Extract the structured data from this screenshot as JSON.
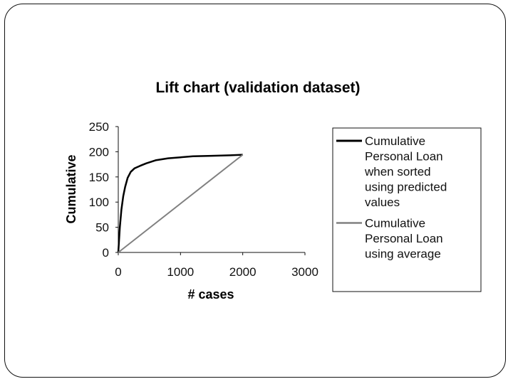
{
  "chart_data": {
    "type": "line",
    "title": "Lift chart (validation dataset)",
    "xlabel": "# cases",
    "ylabel": "Cumulative",
    "xlim": [
      0,
      3000
    ],
    "ylim": [
      0,
      250
    ],
    "x_ticks": [
      "0",
      "1000",
      "2000",
      "3000"
    ],
    "y_ticks": [
      "0",
      "50",
      "100",
      "150",
      "200",
      "250"
    ],
    "grid": false,
    "legend_position": "right",
    "series": [
      {
        "name": "Cumulative Personal Loan when sorted using predicted values",
        "name_lines": [
          "Cumulative",
          "Personal Loan",
          "when sorted",
          "using predicted",
          "values"
        ],
        "color": "#000000",
        "points": [
          [
            0,
            0
          ],
          [
            10,
            20
          ],
          [
            25,
            50
          ],
          [
            50,
            85
          ],
          [
            80,
            112
          ],
          [
            110,
            130
          ],
          [
            150,
            148
          ],
          [
            200,
            160
          ],
          [
            260,
            167
          ],
          [
            350,
            172
          ],
          [
            450,
            177
          ],
          [
            600,
            183
          ],
          [
            800,
            187
          ],
          [
            1000,
            189
          ],
          [
            1200,
            191
          ],
          [
            1500,
            192
          ],
          [
            1800,
            193
          ],
          [
            2000,
            194
          ]
        ]
      },
      {
        "name": "Cumulative Personal Loan using average",
        "name_lines": [
          "Cumulative",
          "Personal Loan",
          "using average"
        ],
        "color": "#808080",
        "points": [
          [
            0,
            0
          ],
          [
            2000,
            194
          ]
        ]
      }
    ]
  }
}
